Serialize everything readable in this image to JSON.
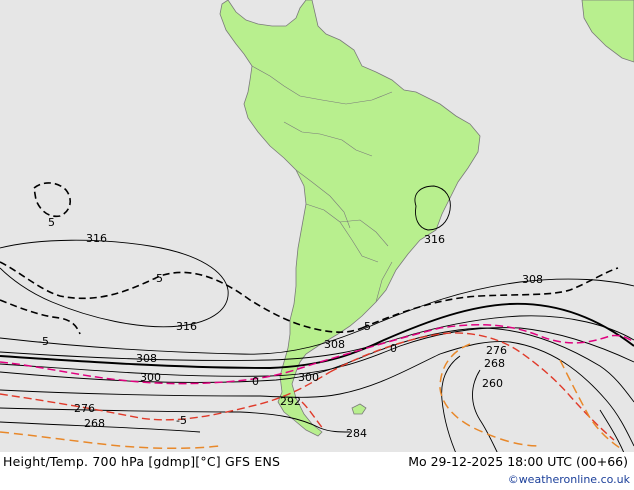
{
  "footer": {
    "title": "Height/Temp. 700 hPa [gdmp][°C] GFS ENS",
    "valid_time": "Mo 29-12-2025 18:00 UTC (00+66)",
    "credit": "©weatheronline.co.uk"
  },
  "colors": {
    "ocean": "#e6e6e6",
    "land": "#b8ef8e",
    "coast": "#7a7a7a",
    "height_contour": "#000000",
    "temp_0": "#e0007f",
    "temp_neg5": "#e03a2a",
    "temp_neg10": "#e8882a"
  },
  "contour_labels": {
    "height": [
      "316",
      "316",
      "316",
      "308",
      "308",
      "308",
      "300",
      "300",
      "292",
      "284",
      "276",
      "276",
      "268",
      "268",
      "260"
    ],
    "temperature": [
      "-5",
      "-5",
      "5",
      "5",
      "0",
      "0",
      "-5"
    ]
  }
}
